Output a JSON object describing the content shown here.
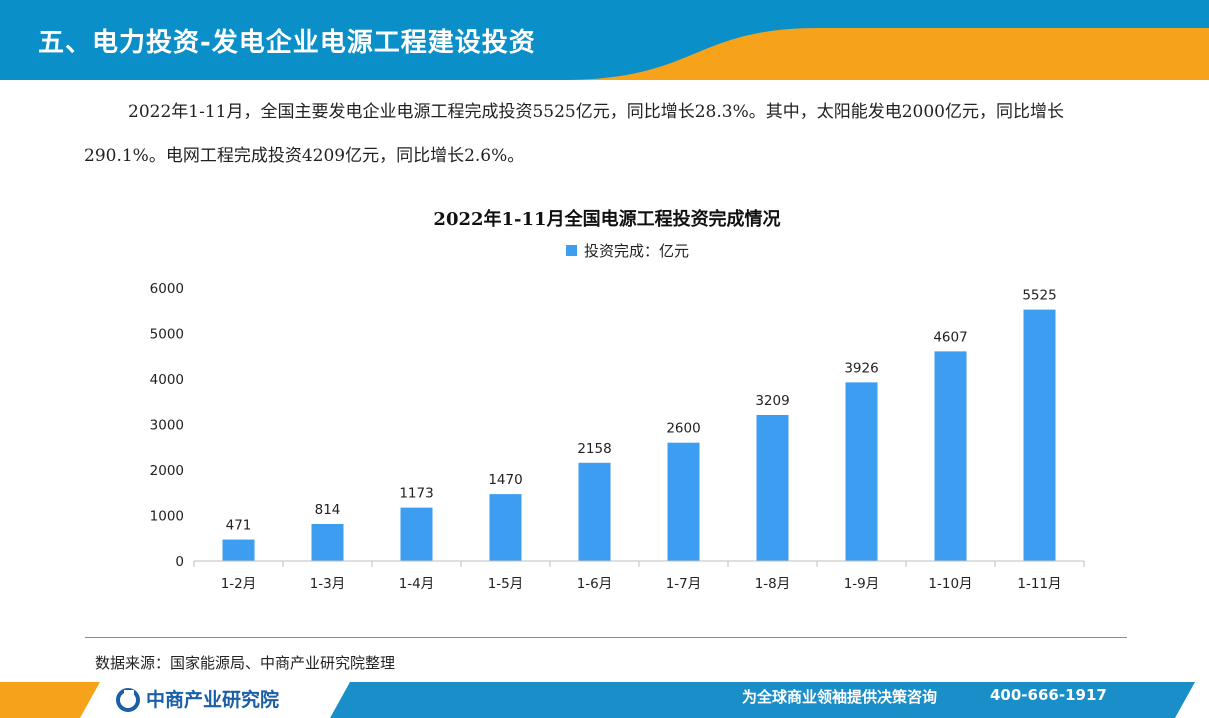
{
  "header": {
    "title": "五、电力投资-发电企业电源工程建设投资"
  },
  "intro": {
    "text": "2022年1-11月，全国主要发电企业电源工程完成投资5525亿元，同比增长28.3%。其中，太阳能发电2000亿元，同比增长290.1%。电网工程完成投资4209亿元，同比增长2.6%。"
  },
  "source": {
    "text": "数据来源：国家能源局、中商产业研究院整理"
  },
  "footer": {
    "logo_text": "中商产业研究院",
    "slogan": "为全球商业领袖提供决策咨询",
    "phone": "400-666-1917"
  },
  "colors": {
    "header_blue": "#0a8fc8",
    "header_orange": "#f7a21b",
    "bar": "#3d9df0",
    "footer_blue": "#1a8ec8"
  },
  "chart_data": {
    "type": "bar",
    "title": "2022年1-11月全国电源工程投资完成情况",
    "legend": [
      "投资完成：亿元"
    ],
    "legend_position": "top-center",
    "categories": [
      "1-2月",
      "1-3月",
      "1-4月",
      "1-5月",
      "1-6月",
      "1-7月",
      "1-8月",
      "1-9月",
      "1-10月",
      "1-11月"
    ],
    "series": [
      {
        "name": "投资完成：亿元",
        "values": [
          471,
          814,
          1173,
          1470,
          2158,
          2600,
          3209,
          3926,
          4607,
          5525
        ]
      }
    ],
    "ylim": [
      0,
      6000
    ],
    "yticks": [
      0,
      1000,
      2000,
      3000,
      4000,
      5000,
      6000
    ],
    "grid": false,
    "data_labels": true
  }
}
